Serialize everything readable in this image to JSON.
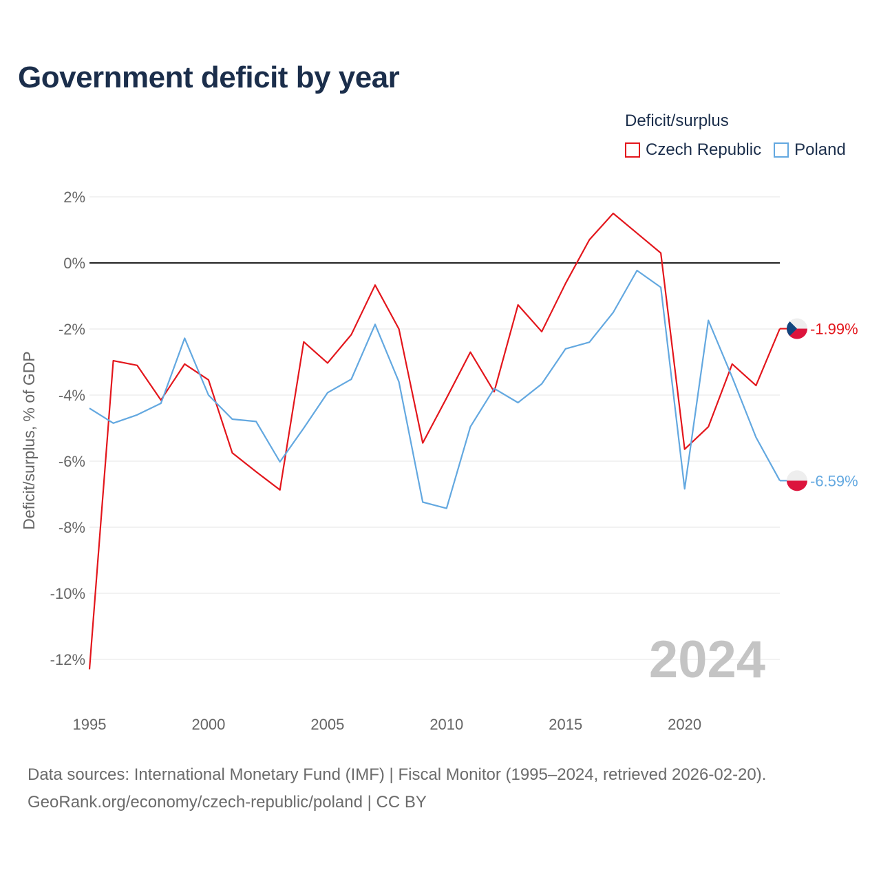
{
  "colors": {
    "czech": "#e3161c",
    "poland": "#63a8e0",
    "title": "#1b2e4b"
  },
  "chart_data": {
    "type": "line",
    "title": "Government deficit by year",
    "ylabel": "Deficit/surplus, % of GDP",
    "xlabel": "",
    "legend_title": "Deficit/surplus",
    "year_label": "2024",
    "xlim": [
      1995,
      2024
    ],
    "ylim": [
      -13,
      2
    ],
    "x_ticks": [
      1995,
      2000,
      2005,
      2010,
      2015,
      2020
    ],
    "x_tick_labels": [
      "1995",
      "2000",
      "2005",
      "2010",
      "2015",
      "2020"
    ],
    "y_ticks": [
      2,
      0,
      -2,
      -4,
      -6,
      -8,
      -10,
      -12
    ],
    "y_tick_labels": [
      "2%",
      "0%",
      "-2%",
      "-4%",
      "-6%",
      "-8%",
      "-10%",
      "-12%"
    ],
    "x": [
      1995,
      1996,
      1997,
      1998,
      1999,
      2000,
      2001,
      2002,
      2003,
      2004,
      2005,
      2006,
      2007,
      2008,
      2009,
      2010,
      2011,
      2012,
      2013,
      2014,
      2015,
      2016,
      2017,
      2018,
      2019,
      2020,
      2021,
      2022,
      2023,
      2024
    ],
    "series": [
      {
        "name": "Czech Republic",
        "key": "czech",
        "end_label": "-1.99%",
        "values": [
          -12.3,
          -2.96,
          -3.1,
          -4.15,
          -3.06,
          -3.54,
          -5.75,
          -6.32,
          -6.87,
          -2.39,
          -3.03,
          -2.17,
          -0.67,
          -2.0,
          -5.45,
          -4.09,
          -2.7,
          -3.9,
          -1.27,
          -2.08,
          -0.62,
          0.7,
          1.5,
          0.9,
          0.3,
          -5.64,
          -4.96,
          -3.06,
          -3.71,
          -1.99
        ]
      },
      {
        "name": "Poland",
        "key": "poland",
        "end_label": "-6.59%",
        "values": [
          -4.4,
          -4.85,
          -4.6,
          -4.25,
          -2.28,
          -4.0,
          -4.73,
          -4.8,
          -6.02,
          -5.0,
          -3.93,
          -3.52,
          -1.86,
          -3.6,
          -7.24,
          -7.43,
          -4.96,
          -3.8,
          -4.23,
          -3.66,
          -2.6,
          -2.4,
          -1.5,
          -0.23,
          -0.74,
          -6.84,
          -1.74,
          -3.46,
          -5.28,
          -6.59
        ]
      }
    ]
  },
  "sources": {
    "line1": "Data sources: International Monetary Fund (IMF) | Fiscal Monitor (1995–2024, retrieved 2026-02-20).",
    "line2": "GeoRank.org/economy/czech-republic/poland | CC BY"
  }
}
